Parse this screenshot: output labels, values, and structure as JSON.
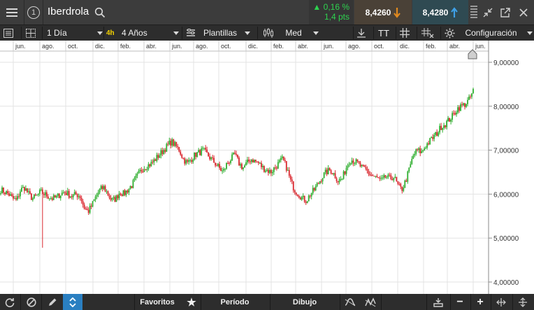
{
  "header": {
    "instrument": "Iberdrola",
    "change_pct": "0,16 %",
    "change_pts": "1,4 pts",
    "sell_price": "8,4260",
    "buy_price": "8,4280",
    "change_color": "#2ed34f",
    "sell_arrow_color": "#e0891f",
    "buy_arrow_color": "#3fa0e6"
  },
  "toolbar": {
    "interval": "1 Día",
    "badge": "4h",
    "range": "4 Años",
    "templates": "Plantillas",
    "size": "Med",
    "text_tool": "TT",
    "settings": "Configuración"
  },
  "footer": {
    "favorites": "Favoritos",
    "period": "Período",
    "drawing": "Dibujo"
  },
  "chart_data": {
    "type": "candlestick",
    "time_labels": [
      "jun.",
      "ago.",
      "oct.",
      "dic.",
      "feb.",
      "abr.",
      "jun.",
      "ago.",
      "oct.",
      "dic.",
      "feb.",
      "abr.",
      "jun.",
      "ago.",
      "oct.",
      "dic.",
      "feb.",
      "abr.",
      "jun."
    ],
    "y_ticks": [
      "9,00000",
      "8,00000",
      "7,00000",
      "6,00000",
      "5,00000",
      "4,00000"
    ],
    "ylim": [
      3.9,
      9.4
    ],
    "up_color": "#2fae2f",
    "down_color": "#d9272e",
    "closes_approx": [
      6.1,
      6.05,
      6.0,
      5.9,
      5.85,
      6.1,
      6.15,
      6.0,
      5.9,
      5.95,
      6.05,
      6.0,
      5.95,
      5.9,
      5.92,
      6.0,
      6.05,
      6.0,
      5.95,
      6.0,
      5.95,
      5.7,
      5.6,
      5.75,
      5.95,
      6.1,
      6.15,
      6.0,
      5.85,
      5.9,
      6.05,
      6.0,
      6.1,
      6.2,
      6.35,
      6.5,
      6.6,
      6.65,
      6.7,
      6.8,
      6.9,
      7.0,
      7.1,
      7.2,
      7.1,
      7.0,
      6.8,
      6.7,
      6.8,
      6.9,
      6.95,
      7.0,
      6.9,
      6.8,
      6.7,
      6.6,
      6.5,
      6.7,
      6.8,
      6.9,
      6.7,
      6.6,
      6.7,
      6.8,
      6.75,
      6.7,
      6.6,
      6.55,
      6.5,
      6.6,
      6.7,
      6.8,
      6.6,
      6.3,
      6.1,
      6.0,
      5.9,
      5.85,
      6.0,
      6.1,
      6.25,
      6.4,
      6.5,
      6.55,
      6.45,
      6.3,
      6.35,
      6.6,
      6.8,
      6.75,
      6.7,
      6.6,
      6.55,
      6.45,
      6.4,
      6.35,
      6.3,
      6.4,
      6.35,
      6.4,
      6.2,
      6.1,
      6.3,
      6.6,
      6.9,
      7.0,
      6.95,
      7.1,
      7.2,
      7.3,
      7.4,
      7.55,
      7.6,
      7.7,
      7.8,
      7.95,
      8.0,
      8.05,
      8.15,
      8.35
    ]
  }
}
